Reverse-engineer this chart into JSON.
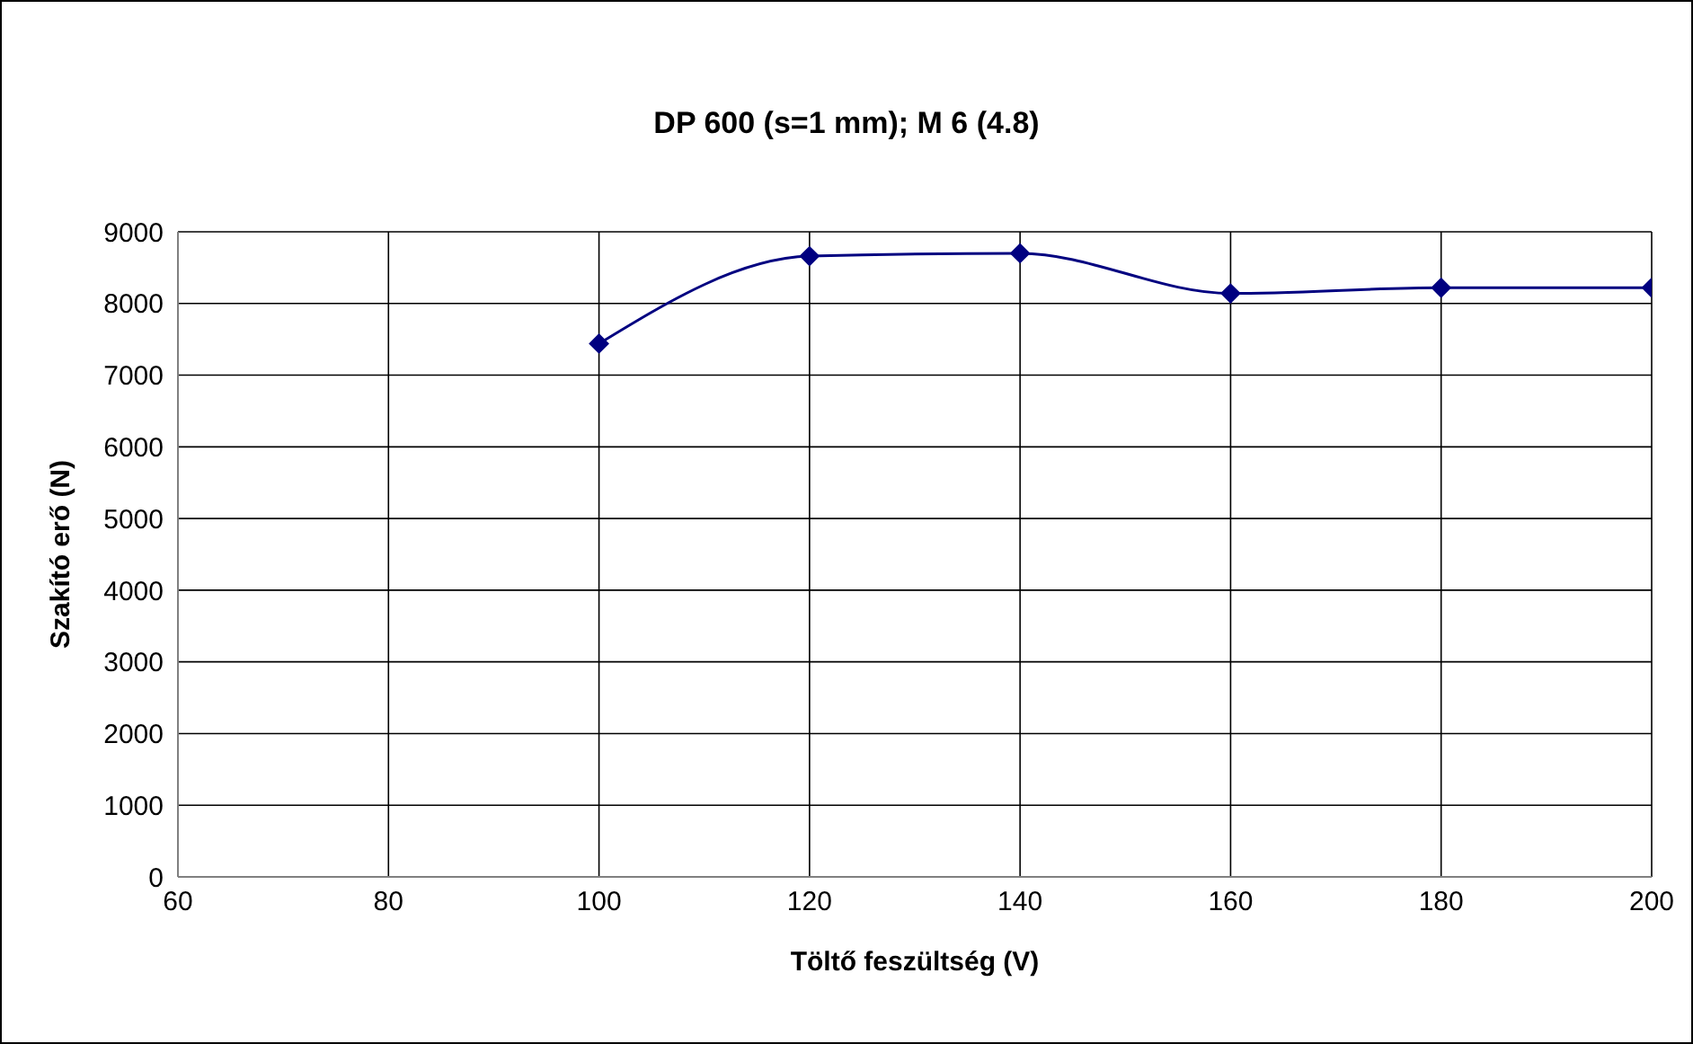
{
  "chart_data": {
    "type": "line",
    "title": "DP 600 (s=1 mm); M 6 (4.8)",
    "xlabel": "Töltő feszültség (V)",
    "ylabel": "Szakító erő (N)",
    "x": [
      100,
      120,
      140,
      160,
      180,
      200
    ],
    "series": [
      {
        "color": "#000080",
        "values": [
          7440,
          8660,
          8700,
          8140,
          8220,
          8220
        ]
      }
    ],
    "xlim": [
      60,
      200
    ],
    "xticks": [
      60,
      80,
      100,
      120,
      140,
      160,
      180,
      200
    ],
    "ylim": [
      0,
      9000
    ],
    "yticks": [
      0,
      1000,
      2000,
      3000,
      4000,
      5000,
      6000,
      7000,
      8000,
      9000
    ],
    "grid": true,
    "legend": false,
    "marker": "diamond",
    "line_style": "solid"
  }
}
